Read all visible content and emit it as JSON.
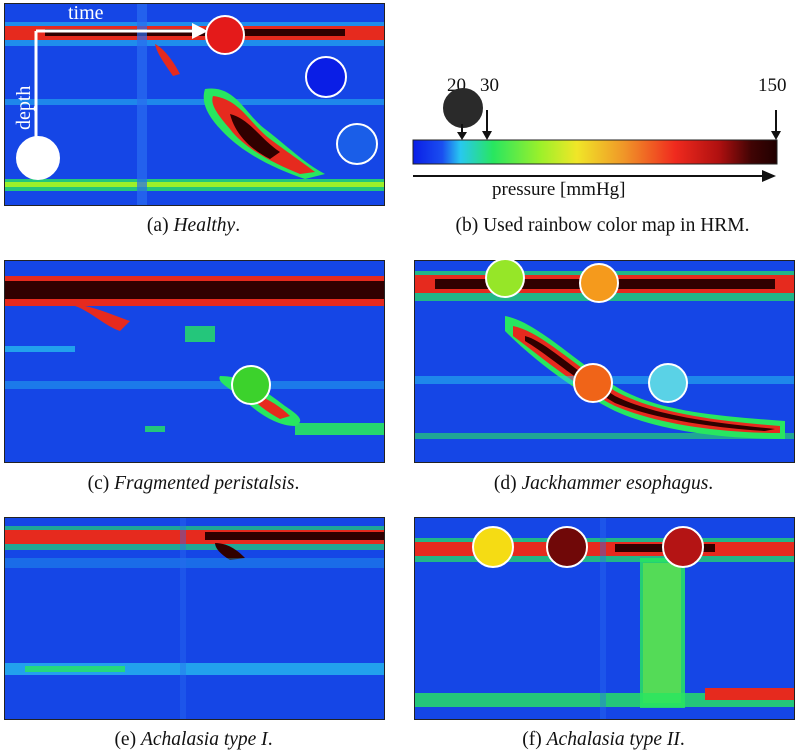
{
  "captions": {
    "a": {
      "prefix": "(a) ",
      "name": "Healthy",
      "suffix": "."
    },
    "b": {
      "text": "(b) Used rainbow color map in HRM."
    },
    "c": {
      "prefix": "(c) ",
      "name": "Fragmented peristalsis",
      "suffix": "."
    },
    "d": {
      "prefix": "(d) ",
      "name": "Jackhammer esophagus",
      "suffix": "."
    },
    "e": {
      "prefix": "(e) ",
      "name": "Achalasia type I",
      "suffix": "."
    },
    "f": {
      "prefix": "(f) ",
      "name": "Achalasia type II",
      "suffix": "."
    }
  },
  "panel_a": {
    "axis_time": "time",
    "axis_depth": "depth"
  },
  "colormap": {
    "tick_20": "20",
    "tick_30": "30",
    "tick_150": "150",
    "axis_label": "pressure [mmHg]",
    "stops": [
      "#0a1ee6",
      "#1a4ef0",
      "#28c8f0",
      "#28e660",
      "#9cf02a",
      "#f0e628",
      "#f09628",
      "#f02a1e",
      "#b01010",
      "#400404",
      "#200000"
    ]
  },
  "marker_colors": {
    "a": [
      "#ffffff",
      "#e41a1a",
      "#0a1ee6",
      "#1a5ee8"
    ],
    "b": [
      "#2a2a2a"
    ],
    "c": [
      "#3cd22c"
    ],
    "d": [
      "#96e628",
      "#f59a1c",
      "#f06418",
      "#5ad2e6"
    ],
    "f": [
      "#f5dc14",
      "#700808",
      "#b41414"
    ]
  }
}
